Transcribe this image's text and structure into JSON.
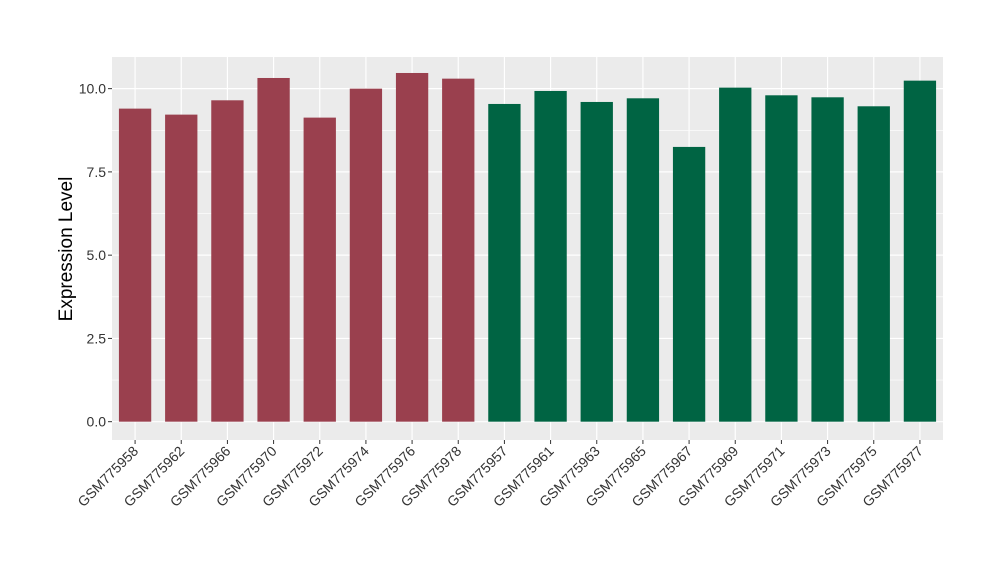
{
  "chart_data": {
    "type": "bar",
    "title": "",
    "xlabel": "",
    "ylabel": "Expression Level",
    "ylim": [
      -0.55,
      10.95
    ],
    "yticks": [
      0.0,
      2.5,
      5.0,
      7.5,
      10.0
    ],
    "ytick_labels": [
      "0.0",
      "2.5",
      "5.0",
      "7.5",
      "10.0"
    ],
    "grid": true,
    "legend": "none",
    "panel_background": "#ebebeb",
    "grid_color": "#ffffff",
    "categories": [
      "GSM775958",
      "GSM775962",
      "GSM775966",
      "GSM775970",
      "GSM775972",
      "GSM775974",
      "GSM775976",
      "GSM775978",
      "GSM775957",
      "GSM775961",
      "GSM775963",
      "GSM775965",
      "GSM775967",
      "GSM775969",
      "GSM775971",
      "GSM775973",
      "GSM775975",
      "GSM775977"
    ],
    "values": [
      9.4,
      9.22,
      9.65,
      10.32,
      9.13,
      10.0,
      10.47,
      10.3,
      9.54,
      9.93,
      9.6,
      9.71,
      8.25,
      10.03,
      9.8,
      9.74,
      9.47,
      10.24
    ],
    "groups": [
      0,
      0,
      0,
      0,
      0,
      0,
      0,
      0,
      1,
      1,
      1,
      1,
      1,
      1,
      1,
      1,
      1,
      1
    ],
    "group_colors": [
      "#9a404e",
      "#006443"
    ]
  }
}
